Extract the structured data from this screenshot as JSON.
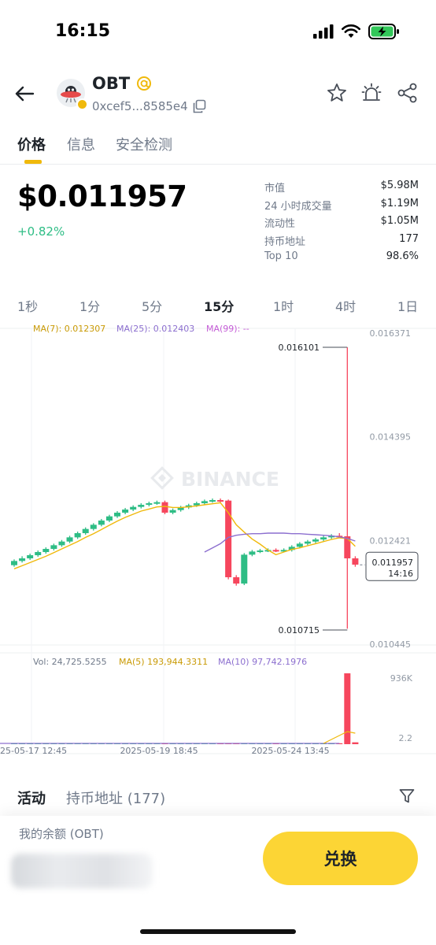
{
  "status": {
    "time": "16:15"
  },
  "token": {
    "name": "OBT",
    "address": "0xcef5...8585e4"
  },
  "tabs": [
    {
      "label": "价格",
      "active": true
    },
    {
      "label": "信息",
      "active": false
    },
    {
      "label": "安全检测",
      "active": false
    }
  ],
  "price": {
    "value": "$0.011957",
    "change": "+0.82%"
  },
  "stats": [
    {
      "label": "市值",
      "value": "$5.98M"
    },
    {
      "label": "24 小时成交量",
      "value": "$1.19M"
    },
    {
      "label": "流动性",
      "value": "$1.05M"
    },
    {
      "label": "持币地址",
      "value": "177"
    },
    {
      "label": "Top 10",
      "value": "98.6%"
    }
  ],
  "intervals": [
    "1秒",
    "1分",
    "5分",
    "15分",
    "1时",
    "4时",
    "1日"
  ],
  "active_interval": "15分",
  "chart_data": {
    "type": "candlestick",
    "price_axis_ticks": [
      0.016371,
      0.014395,
      0.012421,
      0.010445
    ],
    "price_axis_labels": [
      "0.016371",
      "0.014395",
      "0.012421",
      "0.010445"
    ],
    "ma_legend": {
      "ma7": "MA(7): 0.012307",
      "ma25": "MA(25): 0.012403",
      "ma99": "MA(99): --"
    },
    "high_label": "0.016101",
    "low_label": "0.010715",
    "high_value": 0.016101,
    "low_value": 0.010715,
    "last_price_label": "0.011957",
    "countdown_label": "14:16",
    "last_price": 0.011957,
    "watermark": "BINANCE",
    "candles": [
      [
        0.01195,
        0.01203,
        0.01192,
        0.01206
      ],
      [
        0.01203,
        0.01208,
        0.012,
        0.01212
      ],
      [
        0.01208,
        0.01214,
        0.01205,
        0.01217
      ],
      [
        0.01214,
        0.0122,
        0.01211,
        0.01223
      ],
      [
        0.0122,
        0.01226,
        0.01217,
        0.01229
      ],
      [
        0.01226,
        0.01233,
        0.01223,
        0.01236
      ],
      [
        0.01233,
        0.0124,
        0.0123,
        0.01243
      ],
      [
        0.0124,
        0.01248,
        0.01237,
        0.01251
      ],
      [
        0.01248,
        0.01256,
        0.01245,
        0.01259
      ],
      [
        0.01256,
        0.01264,
        0.01253,
        0.01267
      ],
      [
        0.01264,
        0.01272,
        0.01261,
        0.01275
      ],
      [
        0.01272,
        0.0128,
        0.01269,
        0.01283
      ],
      [
        0.0128,
        0.01288,
        0.01277,
        0.01291
      ],
      [
        0.01288,
        0.01295,
        0.01285,
        0.01298
      ],
      [
        0.01295,
        0.01301,
        0.01292,
        0.01304
      ],
      [
        0.01301,
        0.01306,
        0.01298,
        0.01309
      ],
      [
        0.01306,
        0.0131,
        0.01303,
        0.01313
      ],
      [
        0.0131,
        0.01313,
        0.01307,
        0.01316
      ],
      [
        0.01313,
        0.01315,
        0.0131,
        0.01318
      ],
      [
        0.01315,
        0.01295,
        0.01292,
        0.01318
      ],
      [
        0.01295,
        0.013,
        0.01292,
        0.01303
      ],
      [
        0.013,
        0.01305,
        0.01297,
        0.01308
      ],
      [
        0.01305,
        0.01309,
        0.01302,
        0.01312
      ],
      [
        0.01309,
        0.01313,
        0.01306,
        0.01316
      ],
      [
        0.01313,
        0.01317,
        0.0131,
        0.0132
      ],
      [
        0.01317,
        0.01319,
        0.01314,
        0.01322
      ],
      [
        0.01319,
        0.01318,
        0.01315,
        0.01322
      ],
      [
        0.01318,
        0.01172,
        0.01168,
        0.0132
      ],
      [
        0.01172,
        0.0116,
        0.01156,
        0.01176
      ],
      [
        0.0116,
        0.01215,
        0.01157,
        0.01218
      ],
      [
        0.01215,
        0.01221,
        0.01212,
        0.01224
      ],
      [
        0.01221,
        0.01223,
        0.01218,
        0.01226
      ],
      [
        0.01223,
        0.01224,
        0.0122,
        0.01227
      ],
      [
        0.01224,
        0.01223,
        0.0122,
        0.01227
      ],
      [
        0.01223,
        0.01224,
        0.0122,
        0.01227
      ],
      [
        0.01224,
        0.0123,
        0.01221,
        0.01233
      ],
      [
        0.0123,
        0.01236,
        0.01227,
        0.01239
      ],
      [
        0.01236,
        0.0124,
        0.01233,
        0.01243
      ],
      [
        0.0124,
        0.01244,
        0.01237,
        0.01247
      ],
      [
        0.01244,
        0.01248,
        0.01241,
        0.01251
      ],
      [
        0.01248,
        0.01251,
        0.01245,
        0.01254
      ],
      [
        0.01251,
        0.0125,
        0.01247,
        0.01256
      ],
      [
        0.0125,
        0.01208,
        0.01074,
        0.0161
      ],
      [
        0.01208,
        0.01196,
        0.01192,
        0.01212
      ]
    ],
    "ma7_line": [
      0.01188,
      0.01194,
      0.012,
      0.01206,
      0.01212,
      0.01219,
      0.01226,
      0.01233,
      0.0124,
      0.01248,
      0.01255,
      0.01263,
      0.01271,
      0.01279,
      0.01286,
      0.01292,
      0.01298,
      0.01302,
      0.01306,
      0.01307,
      0.01305,
      0.01305,
      0.01306,
      0.01308,
      0.0131,
      0.01312,
      0.01314,
      0.01295,
      0.01272,
      0.01258,
      0.01245,
      0.01235,
      0.01224,
      0.01215,
      0.0122,
      0.01225,
      0.01228,
      0.01232,
      0.01236,
      0.0124,
      0.01244,
      0.01247,
      0.01246,
      0.01231
    ],
    "ma25_line": [
      null,
      null,
      null,
      null,
      null,
      null,
      null,
      null,
      null,
      null,
      null,
      null,
      null,
      null,
      null,
      null,
      null,
      null,
      null,
      null,
      null,
      null,
      null,
      null,
      0.0122,
      0.01228,
      0.01236,
      0.01248,
      0.01252,
      0.01254,
      0.01255,
      0.01255,
      0.01256,
      0.01256,
      0.01256,
      0.01255,
      0.01255,
      0.01254,
      0.01253,
      0.01252,
      0.01251,
      0.01249,
      0.01246,
      0.01241
    ],
    "x_axis_labels": [
      "25-05-17 12:45",
      "2025-05-19 18:45",
      "2025-05-24 13:45"
    ],
    "volume": {
      "legend_vol": "Vol: 24,725.5255",
      "legend_ma5": "MA(5) 193,944.3311",
      "legend_ma10": "MA(10) 97,742.1976",
      "axis_labels": [
        "936K",
        "2.2"
      ],
      "bars": [
        2000,
        2000,
        2000,
        2000,
        2000,
        2000,
        2000,
        2000,
        2000,
        2000,
        2000,
        2000,
        2000,
        2000,
        2000,
        2000,
        2000,
        2000,
        2000,
        2000,
        2000,
        2000,
        2000,
        2000,
        2000,
        2000,
        2000,
        2000,
        2000,
        2000,
        2000,
        2000,
        2000,
        2000,
        2000,
        2000,
        2000,
        2000,
        2000,
        2000,
        2000,
        2000,
        936000,
        24725
      ],
      "bar_up": [
        true,
        true,
        true,
        true,
        true,
        true,
        true,
        true,
        true,
        true,
        true,
        true,
        true,
        true,
        true,
        true,
        true,
        true,
        true,
        false,
        true,
        true,
        true,
        true,
        true,
        true,
        false,
        false,
        false,
        true,
        true,
        true,
        true,
        false,
        true,
        true,
        true,
        true,
        true,
        true,
        true,
        false,
        false,
        false
      ]
    },
    "colors": {
      "up": "#2ebd85",
      "down": "#f6465d",
      "ma7": "#f0b90b",
      "ma25": "#8c6fcf",
      "ma99": "#c45cd6"
    }
  },
  "activity": {
    "tabs": [
      {
        "label": "活动",
        "active": true
      },
      {
        "label": "持币地址 (177)",
        "active": false
      }
    ]
  },
  "balance": {
    "label": "我的余额 (OBT)"
  },
  "swap_button": {
    "label": "兑换"
  }
}
